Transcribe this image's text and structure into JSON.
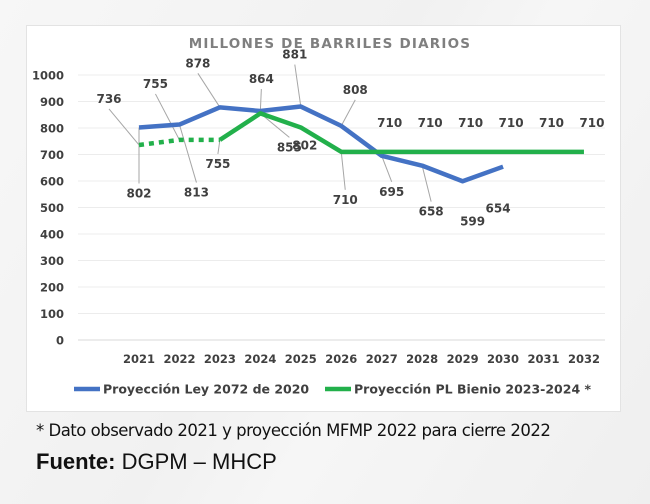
{
  "chart_data": {
    "type": "line",
    "title": "MILLONES DE BARRILES DIARIOS",
    "xlabel": "",
    "ylabel": "",
    "ylim": [
      0,
      1000
    ],
    "yticks": [
      "0",
      "100",
      "200",
      "300",
      "400",
      "500",
      "600",
      "700",
      "800",
      "900",
      "1000"
    ],
    "categories": [
      "2021",
      "2022",
      "2023",
      "2024",
      "2025",
      "2026",
      "2027",
      "2028",
      "2029",
      "2030",
      "2031",
      "2032"
    ],
    "grid": true,
    "legend_position": "bottom",
    "series": [
      {
        "name": "Proyección Ley  2072 de 2020",
        "color": "#4472c4",
        "values": [
          802,
          813,
          878,
          864,
          881,
          808,
          695,
          658,
          599,
          654,
          null,
          null
        ],
        "labels": [
          "802",
          "813",
          "878",
          "864",
          "881",
          "808",
          "695",
          "658",
          "599",
          "654"
        ]
      },
      {
        "name": "Proyección PL Bienio 2023-2024 *",
        "color": "#22b04b",
        "values": [
          736,
          755,
          755,
          855,
          802,
          710,
          710,
          710,
          710,
          710,
          710,
          710
        ],
        "dashed_until_index": 2,
        "labels": [
          "736",
          "755",
          "755",
          "855",
          "802",
          "710",
          "710",
          "710",
          "710",
          "710",
          "710",
          "710"
        ]
      }
    ]
  },
  "footnote": "* Dato observado 2021 y proyección MFMP 2022 para cierre 2022",
  "source": {
    "label": "Fuente:",
    "value": " DGPM – MHCP"
  }
}
